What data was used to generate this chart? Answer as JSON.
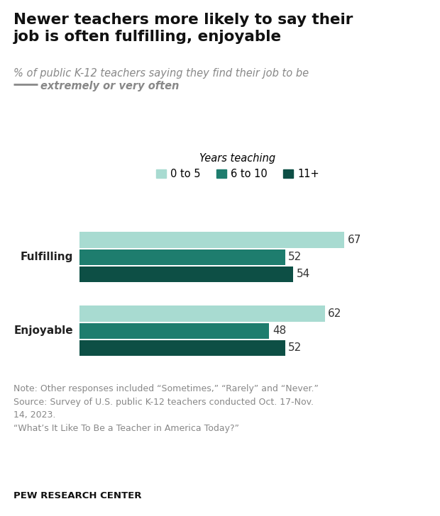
{
  "title": "Newer teachers more likely to say their\njob is often fulfilling, enjoyable",
  "subtitle_normal": "% of public K-12 teachers saying they find their job to be",
  "subtitle_bold": "extremely or very often",
  "legend_title": "Years teaching",
  "legend_labels": [
    "0 to 5",
    "6 to 10",
    "11+"
  ],
  "colors": [
    "#a8dbd1",
    "#1e7d6e",
    "#0d4f45"
  ],
  "categories": [
    "Fulfilling",
    "Enjoyable"
  ],
  "values": {
    "Fulfilling": [
      67,
      52,
      54
    ],
    "Enjoyable": [
      62,
      48,
      52
    ]
  },
  "note": "Note: Other responses included “Sometimes,” “Rarely” and “Never.”\nSource: Survey of U.S. public K-12 teachers conducted Oct. 17-Nov.\n14, 2023.\n“What’s It Like To Be a Teacher in America Today?”",
  "source_label": "PEW RESEARCH CENTER",
  "xlim": [
    0,
    80
  ],
  "bar_height": 0.22,
  "background_color": "#ffffff",
  "title_color": "#111111",
  "subtitle_color": "#888888",
  "note_color": "#888888",
  "label_color": "#222222",
  "value_color": "#333333"
}
